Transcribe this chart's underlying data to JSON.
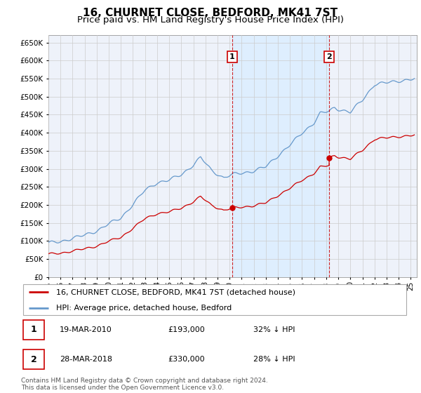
{
  "title": "16, CHURNET CLOSE, BEDFORD, MK41 7ST",
  "subtitle": "Price paid vs. HM Land Registry's House Price Index (HPI)",
  "ylim": [
    0,
    670000
  ],
  "yticks": [
    0,
    50000,
    100000,
    150000,
    200000,
    250000,
    300000,
    350000,
    400000,
    450000,
    500000,
    550000,
    600000,
    650000
  ],
  "xlim_start": 1995.0,
  "xlim_end": 2025.5,
  "sale1_x": 2010.22,
  "sale1_y": 193000,
  "sale1_label": "1",
  "sale2_x": 2018.24,
  "sale2_y": 330000,
  "sale2_label": "2",
  "line_color_property": "#cc0000",
  "line_color_hpi": "#6699cc",
  "shade_color": "#ddeeff",
  "grid_color": "#cccccc",
  "background_color": "#eef2fa",
  "legend_label_property": "16, CHURNET CLOSE, BEDFORD, MK41 7ST (detached house)",
  "legend_label_hpi": "HPI: Average price, detached house, Bedford",
  "table_entries": [
    {
      "num": "1",
      "date": "19-MAR-2010",
      "price": "£193,000",
      "pct": "32% ↓ HPI"
    },
    {
      "num": "2",
      "date": "28-MAR-2018",
      "price": "£330,000",
      "pct": "28% ↓ HPI"
    }
  ],
  "footnote": "Contains HM Land Registry data © Crown copyright and database right 2024.\nThis data is licensed under the Open Government Licence v3.0.",
  "title_fontsize": 11,
  "subtitle_fontsize": 9.5,
  "tick_fontsize": 7.5,
  "legend_fontsize": 8,
  "table_fontsize": 8
}
